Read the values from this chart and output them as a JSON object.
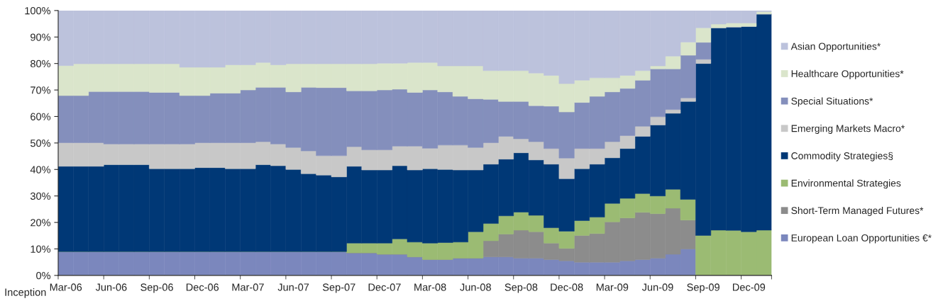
{
  "chart_data": {
    "type": "bar",
    "stacked": true,
    "categories": [
      "Mar-06",
      null,
      null,
      "Jun-06",
      null,
      null,
      "Sep-06",
      null,
      null,
      "Dec-06",
      null,
      null,
      "Mar-07",
      null,
      null,
      "Jun-07",
      null,
      null,
      "Sep-07",
      null,
      null,
      "Dec-07",
      null,
      null,
      "Mar-08",
      null,
      null,
      "Jun-08",
      null,
      null,
      "Sep-08",
      null,
      null,
      "Dec-08",
      null,
      null,
      "Mar-09",
      null,
      null,
      "Jun-09",
      null,
      null,
      "Sep-09",
      null,
      null,
      "Dec-09",
      null
    ],
    "series": [
      {
        "name": "European Loan Opportunities €*",
        "color": "#7b87bd",
        "values": [
          9,
          9,
          9,
          9,
          9,
          9,
          9,
          9,
          9,
          9,
          9,
          9,
          9,
          9,
          9,
          9,
          9,
          9,
          9,
          8.5,
          8.5,
          8,
          8,
          7,
          6,
          6,
          6.5,
          6.5,
          7,
          7,
          6.5,
          6.5,
          6,
          5.5,
          5,
          5,
          5,
          5.5,
          6,
          6.5,
          8,
          10,
          0,
          0,
          0,
          0,
          0
        ]
      },
      {
        "name": "Short-Term Managed Futures*",
        "color": "#8c8c8c",
        "values": [
          0,
          0,
          0,
          0,
          0,
          0,
          0,
          0,
          0,
          0,
          0,
          0,
          0,
          0,
          0,
          0,
          0,
          0,
          0,
          0,
          0,
          0,
          0,
          0,
          0,
          0,
          0,
          0,
          6.1,
          8.6,
          10.6,
          10,
          6.2,
          4.7,
          10.1,
          10.8,
          15.2,
          16.2,
          17.8,
          16.8,
          17.4,
          10.9,
          0,
          0,
          0,
          0,
          0
        ]
      },
      {
        "name": "Environmental Strategies",
        "color": "#9bbb73",
        "values": [
          0,
          0,
          0,
          0,
          0,
          0,
          0,
          0,
          0,
          0,
          0,
          0,
          0,
          0,
          0,
          0,
          0,
          0,
          0,
          3.7,
          3.7,
          4.2,
          5.8,
          5.6,
          6.2,
          6.4,
          6.1,
          10,
          6.5,
          6.9,
          6.8,
          6.2,
          5.8,
          6.5,
          5.6,
          6.2,
          7,
          7.4,
          7.1,
          6.7,
          7.1,
          7.8,
          15.1,
          17.1,
          17,
          16.5,
          17.1
        ]
      },
      {
        "name": "Commodity Strategies§",
        "color": "#003876",
        "values": [
          32.2,
          32.2,
          32.2,
          32.8,
          32.8,
          32.8,
          31.3,
          31.3,
          31.3,
          31.7,
          31.7,
          31.3,
          31.3,
          32.8,
          32.4,
          31,
          29.4,
          28.9,
          28.2,
          29,
          27.6,
          27.6,
          27.6,
          27.2,
          28.1,
          27.6,
          27.2,
          23.3,
          22.4,
          21.4,
          22.4,
          20.9,
          24,
          19.8,
          19.6,
          20,
          17.2,
          18.8,
          21.6,
          26.8,
          28.7,
          37,
          64.9,
          76.4,
          76.8,
          77.5,
          81.6
        ]
      },
      {
        "name": "Emerging Markets Macro*",
        "color": "#c8c8c8",
        "values": [
          8.9,
          8.9,
          8.9,
          7.8,
          7.8,
          7.8,
          9.3,
          9.3,
          9.3,
          9.4,
          9.4,
          9.8,
          9.8,
          8.7,
          8.2,
          8.3,
          8.6,
          7.3,
          8,
          7.4,
          7.6,
          7.6,
          7.4,
          9,
          7.7,
          9.2,
          9.4,
          8.5,
          8.1,
          8.6,
          5.3,
          6.9,
          5.9,
          7.8,
          7.6,
          5.9,
          6.1,
          4.9,
          3.8,
          3.1,
          1.4,
          1.3,
          1.6,
          0,
          0,
          0,
          0
        ]
      },
      {
        "name": "Special Situations*",
        "color": "#848fbc",
        "values": [
          17.8,
          17.8,
          19.3,
          19.8,
          19.8,
          19.8,
          19.5,
          19.5,
          18.3,
          17.8,
          18.7,
          18.7,
          19.9,
          20.5,
          21.4,
          21,
          24,
          25.7,
          25.7,
          21.1,
          22.3,
          22.6,
          21.5,
          20.3,
          22,
          20.1,
          18.4,
          18.4,
          16.4,
          13.2,
          14.1,
          13.6,
          16,
          17.4,
          17.4,
          19.7,
          18.8,
          17.8,
          17.4,
          18.1,
          15.4,
          16.1,
          6.4,
          0,
          0,
          0,
          0
        ]
      },
      {
        "name": "Healthcare Opportunities*",
        "color": "#dae5cb",
        "values": [
          11.3,
          12,
          10.5,
          10.5,
          10.5,
          10.5,
          10.8,
          10.8,
          10.7,
          10.7,
          9.8,
          10.7,
          9.5,
          9.4,
          8.5,
          10.6,
          8.9,
          9,
          9,
          10.2,
          10.2,
          10.1,
          9.8,
          11.3,
          10.4,
          9.8,
          11.5,
          12.4,
          10.8,
          11.6,
          11.6,
          12.3,
          11.6,
          10.7,
          8.4,
          7,
          5.3,
          4.9,
          3.6,
          1.1,
          4.8,
          5,
          5.5,
          1.4,
          1.5,
          1.3,
          0.9
        ]
      },
      {
        "name": "Asian Opportunities*",
        "color": "#bcc2dc",
        "values": [
          20.8,
          20.1,
          20.1,
          20.1,
          20.1,
          20.1,
          20.1,
          20.1,
          21.4,
          21.4,
          21.4,
          20.5,
          20.5,
          19.6,
          20.5,
          20.1,
          20.1,
          20.1,
          20.1,
          20.1,
          20.1,
          19.9,
          19.9,
          19.6,
          19.6,
          20.9,
          20.9,
          20.9,
          22.7,
          22.7,
          22.7,
          23.6,
          24.5,
          27.6,
          26.3,
          25.4,
          25.4,
          24.5,
          22.7,
          20.9,
          17.2,
          11.9,
          6.5,
          5.1,
          4.7,
          4.7,
          0.4
        ]
      }
    ],
    "ylim": [
      0,
      100
    ],
    "yticks": [
      {
        "value": 0,
        "label": "0%"
      },
      {
        "value": 10,
        "label": "10%"
      },
      {
        "value": 20,
        "label": "20%"
      },
      {
        "value": 30,
        "label": "30%"
      },
      {
        "value": 40,
        "label": "40%"
      },
      {
        "value": 50,
        "label": "50%"
      },
      {
        "value": 60,
        "label": "60%"
      },
      {
        "value": 70,
        "label": "70%"
      },
      {
        "value": 80,
        "label": "80%"
      },
      {
        "value": 90,
        "label": "90%"
      },
      {
        "value": 100,
        "label": "100%"
      }
    ],
    "legend": "right",
    "annotations": [
      "Inception"
    ]
  }
}
